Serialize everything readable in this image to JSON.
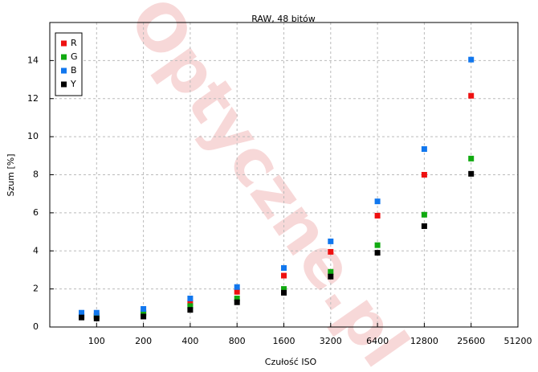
{
  "chart_data": {
    "type": "scatter",
    "title": "RAW, 48 bitów",
    "xlabel": "Czułość ISO",
    "ylabel": "Szum [%]",
    "watermark": "Optyczne.pl",
    "x": [
      80,
      100,
      200,
      400,
      800,
      1600,
      3200,
      6400,
      12800,
      25600
    ],
    "xscale": "log",
    "xlim": [
      50,
      51200
    ],
    "xticks": [
      100,
      200,
      400,
      800,
      1600,
      3200,
      6400,
      12800,
      25600,
      51200
    ],
    "ylim": [
      0,
      16
    ],
    "yticks": [
      0,
      2,
      4,
      6,
      8,
      10,
      12,
      14
    ],
    "grid": true,
    "legend": "upper left",
    "series": [
      {
        "name": "R",
        "color": "#ee1111",
        "values": [
          0.6,
          0.6,
          0.75,
          1.25,
          1.85,
          2.7,
          3.95,
          5.85,
          8.0,
          12.15
        ]
      },
      {
        "name": "G",
        "color": "#11aa11",
        "values": [
          0.55,
          0.55,
          0.7,
          1.1,
          1.5,
          2.0,
          2.9,
          4.3,
          5.9,
          8.85
        ]
      },
      {
        "name": "B",
        "color": "#1177ee",
        "values": [
          0.75,
          0.75,
          0.95,
          1.5,
          2.1,
          3.1,
          4.5,
          6.6,
          9.35,
          14.05
        ]
      },
      {
        "name": "Y",
        "color": "#000000",
        "values": [
          0.5,
          0.45,
          0.55,
          0.9,
          1.3,
          1.8,
          2.65,
          3.9,
          5.3,
          8.05
        ]
      }
    ]
  }
}
